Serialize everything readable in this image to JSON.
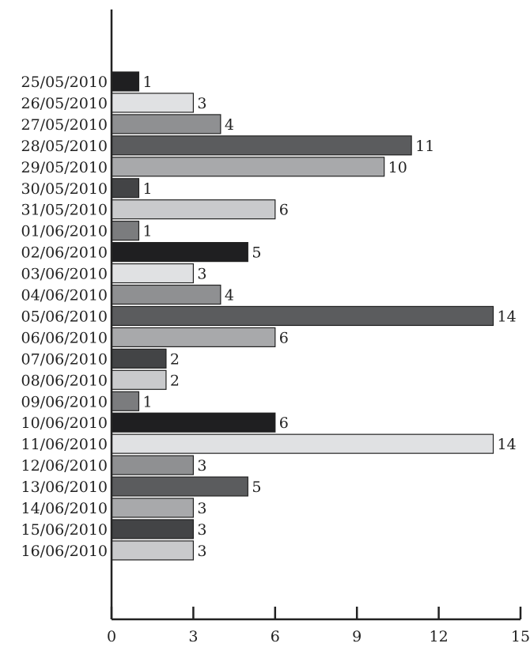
{
  "chart_data": {
    "type": "bar",
    "orientation": "horizontal",
    "categories": [
      "25/05/2010",
      "26/05/2010",
      "27/05/2010",
      "28/05/2010",
      "29/05/2010",
      "30/05/2010",
      "31/05/2010",
      "01/06/2010",
      "02/06/2010",
      "03/06/2010",
      "04/06/2010",
      "05/06/2010",
      "06/06/2010",
      "07/06/2010",
      "08/06/2010",
      "09/06/2010",
      "10/06/2010",
      "11/06/2010",
      "12/06/2010",
      "13/06/2010",
      "14/06/2010",
      "15/06/2010",
      "16/06/2010"
    ],
    "values": [
      1,
      3,
      4,
      11,
      10,
      1,
      6,
      1,
      5,
      3,
      4,
      14,
      6,
      2,
      2,
      1,
      6,
      14,
      3,
      5,
      3,
      3,
      3
    ],
    "xlim": [
      0,
      15
    ],
    "xticks": [
      0,
      3,
      6,
      9,
      12,
      15
    ],
    "title": "",
    "xlabel": "",
    "ylabel": "",
    "grid": false,
    "legend": "none",
    "colors": [
      "#1f1f21",
      "#e0e1e3",
      "#8f9092",
      "#5b5c5e",
      "#a8a9ab",
      "#434446",
      "#c9cacc",
      "#7b7c7e"
    ]
  }
}
